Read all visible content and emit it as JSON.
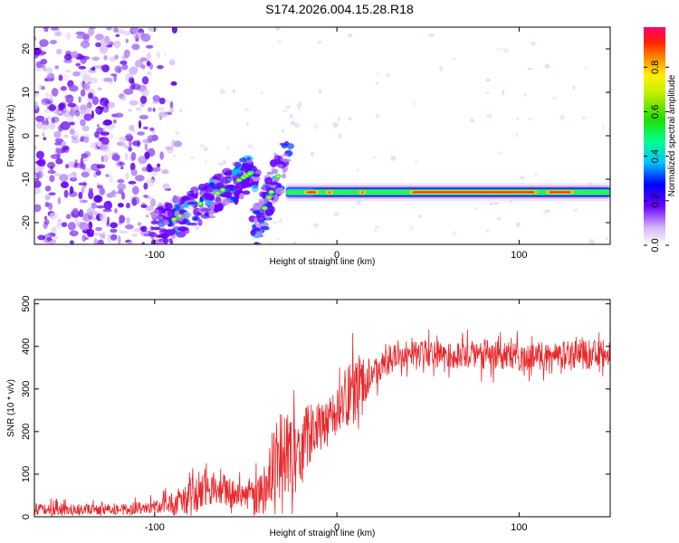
{
  "title": "S174.2026.004.15.28.R18",
  "chart_data": [
    {
      "type": "heatmap",
      "xlabel": "Height of straight line (km)",
      "ylabel": "Frequency (Hz)",
      "xlim": [
        -166,
        150
      ],
      "ylim": [
        -25,
        25
      ],
      "xticks": [
        -100,
        0,
        100
      ],
      "yticks": [
        20,
        10,
        0,
        -10,
        -20
      ],
      "colorbar": {
        "label": "Normalized spectral amplitude",
        "range": [
          0.0,
          0.98
        ],
        "ticks": [
          0.0,
          0.2,
          0.4,
          0.6,
          0.8
        ],
        "tick_labels": [
          "0.0",
          "0.2",
          "0.4",
          "0.6",
          "0.8"
        ]
      },
      "features": [
        {
          "name": "noise-region",
          "x_range": [
            -166,
            -95
          ],
          "f_range": [
            -25,
            25
          ]
        },
        {
          "name": "rising-band-1",
          "from": [
            -100,
            -22
          ],
          "to": [
            -45,
            -8
          ]
        },
        {
          "name": "rising-band-2",
          "from": [
            -45,
            -22
          ],
          "to": [
            -28,
            -5
          ]
        },
        {
          "name": "steady-tone",
          "x_range": [
            -28,
            150
          ],
          "frequency_hz": -13
        }
      ]
    },
    {
      "type": "line",
      "xlabel": "Height of straight line (km)",
      "ylabel": "SNR (10 * v/v)",
      "xlim": [
        -166,
        150
      ],
      "ylim": [
        0,
        510
      ],
      "xticks": [
        -100,
        0,
        100
      ],
      "yticks": [
        0,
        100,
        200,
        300,
        400,
        500
      ],
      "series_color": "#e8282b",
      "envelope": {
        "x": [
          -166,
          -120,
          -100,
          -90,
          -80,
          -70,
          -60,
          -50,
          -40,
          -35,
          -30,
          -25,
          -20,
          -15,
          -10,
          -5,
          0,
          5,
          10,
          15,
          20,
          30,
          40,
          60,
          80,
          100,
          120,
          140,
          150
        ],
        "mean": [
          18,
          18,
          22,
          30,
          60,
          70,
          60,
          45,
          55,
          120,
          150,
          130,
          160,
          190,
          210,
          220,
          250,
          280,
          300,
          320,
          340,
          370,
          385,
          380,
          380,
          375,
          380,
          380,
          390
        ],
        "spread": [
          20,
          18,
          25,
          40,
          70,
          60,
          55,
          45,
          80,
          150,
          140,
          140,
          130,
          110,
          90,
          80,
          80,
          100,
          120,
          80,
          50,
          45,
          45,
          45,
          50,
          50,
          45,
          50,
          50
        ]
      }
    }
  ]
}
